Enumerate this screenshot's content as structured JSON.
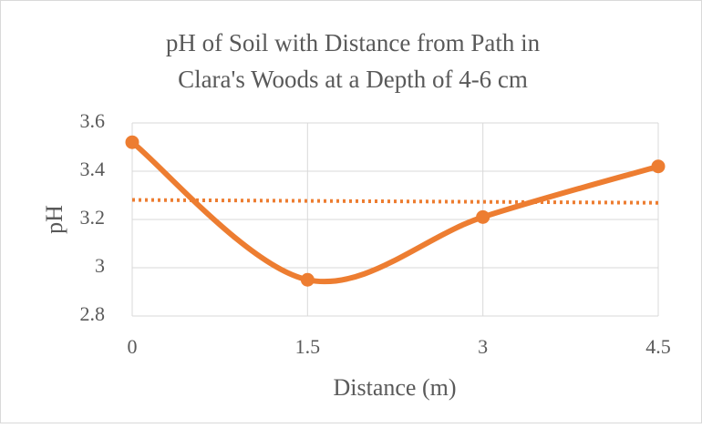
{
  "chart_data": {
    "type": "line",
    "title": [
      "pH of Soil with Distance from Path in",
      "Clara's Woods at a Depth of 4-6 cm"
    ],
    "x_label": "Distance (m)",
    "y_label": "pH",
    "x": [
      0,
      1.5,
      3,
      4.5
    ],
    "series": [
      {
        "color": "#ed7d31",
        "values": [
          3.52,
          2.95,
          3.21,
          3.42
        ]
      }
    ],
    "trendline": {
      "kind": "linear",
      "style": "dotted",
      "color": "#ed7d31"
    },
    "smooth": true,
    "markers": true,
    "xlim": [
      0,
      4.5
    ],
    "xticks": [
      0,
      1.5,
      3,
      4.5
    ],
    "ylim": [
      2.8,
      3.6
    ],
    "yticks": [
      2.8,
      3,
      3.2,
      3.4,
      3.6
    ],
    "grid": true
  }
}
